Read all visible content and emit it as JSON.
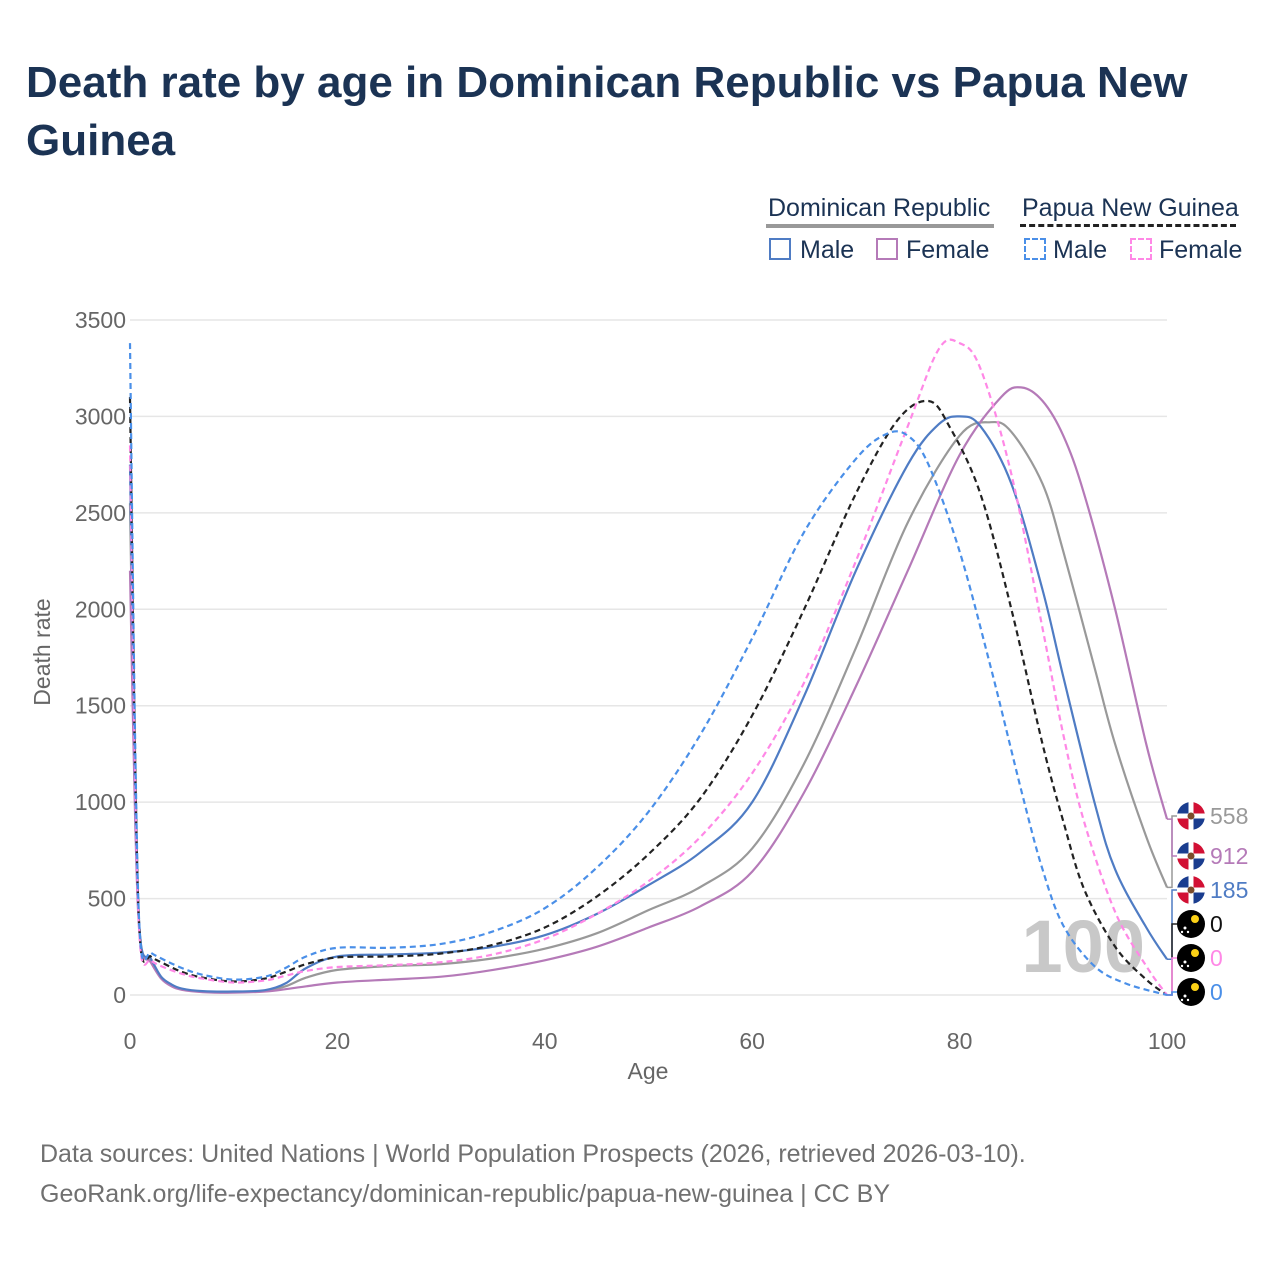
{
  "title": "Death rate by age in Dominican Republic vs Papua New Guinea",
  "legend": {
    "group1": "Dominican Republic",
    "group2": "Papua New Guinea",
    "male": "Male",
    "female": "Female"
  },
  "footer": {
    "line1": "Data sources: United Nations | World Population Prospects (2026, retrieved 2026-03-10).",
    "line2": "GeoRank.org/life-expectancy/dominican-republic/papua-new-guinea | CC BY"
  },
  "colors": {
    "dr_male": "#4f7cc4",
    "dr_female": "#b57ab8",
    "dr_total": "#999999",
    "png_male": "#4a8fe8",
    "png_female": "#ff88e6",
    "png_total": "#222222",
    "title": "#1b3354"
  },
  "chart_data": {
    "type": "line",
    "title": "Death rate by age in Dominican Republic vs Papua New Guinea",
    "xlabel": "Age",
    "ylabel": "Death rate",
    "xlim": [
      0,
      100
    ],
    "ylim": [
      0,
      3500
    ],
    "x_ticks": [
      0,
      20,
      40,
      60,
      80,
      100
    ],
    "y_ticks": [
      0,
      500,
      1000,
      1500,
      2000,
      2500,
      3000,
      3500
    ],
    "watermark": "100",
    "series": [
      {
        "name": "Dominican Republic Total",
        "country": "Dominican Republic",
        "sex": "Total",
        "dashed": false,
        "color": "#999999",
        "points": [
          [
            0,
            2550
          ],
          [
            0.5,
            1000
          ],
          [
            1,
            280
          ],
          [
            2,
            180
          ],
          [
            3,
            90
          ],
          [
            4,
            50
          ],
          [
            5,
            30
          ],
          [
            7,
            18
          ],
          [
            10,
            15
          ],
          [
            13,
            22
          ],
          [
            15,
            45
          ],
          [
            17,
            90
          ],
          [
            20,
            130
          ],
          [
            25,
            150
          ],
          [
            30,
            160
          ],
          [
            35,
            190
          ],
          [
            40,
            240
          ],
          [
            45,
            320
          ],
          [
            50,
            440
          ],
          [
            55,
            560
          ],
          [
            60,
            760
          ],
          [
            65,
            1200
          ],
          [
            70,
            1800
          ],
          [
            75,
            2450
          ],
          [
            80,
            2900
          ],
          [
            83,
            2970
          ],
          [
            85,
            2920
          ],
          [
            88,
            2650
          ],
          [
            90,
            2300
          ],
          [
            93,
            1700
          ],
          [
            95,
            1300
          ],
          [
            98,
            820
          ],
          [
            100,
            558
          ]
        ],
        "end_label": "558"
      },
      {
        "name": "Dominican Republic Female",
        "country": "Dominican Republic",
        "sex": "Female",
        "dashed": false,
        "color": "#b57ab8",
        "points": [
          [
            0,
            2200
          ],
          [
            0.5,
            900
          ],
          [
            1,
            270
          ],
          [
            2,
            170
          ],
          [
            3,
            85
          ],
          [
            4,
            45
          ],
          [
            5,
            27
          ],
          [
            7,
            15
          ],
          [
            10,
            12
          ],
          [
            13,
            18
          ],
          [
            15,
            30
          ],
          [
            17,
            45
          ],
          [
            20,
            65
          ],
          [
            25,
            80
          ],
          [
            30,
            95
          ],
          [
            35,
            130
          ],
          [
            40,
            180
          ],
          [
            45,
            250
          ],
          [
            50,
            350
          ],
          [
            55,
            460
          ],
          [
            60,
            640
          ],
          [
            65,
            1050
          ],
          [
            70,
            1600
          ],
          [
            75,
            2200
          ],
          [
            80,
            2800
          ],
          [
            84,
            3100
          ],
          [
            86,
            3150
          ],
          [
            88,
            3080
          ],
          [
            90,
            2900
          ],
          [
            92,
            2600
          ],
          [
            95,
            2000
          ],
          [
            98,
            1300
          ],
          [
            100,
            912
          ]
        ],
        "end_label": "912"
      },
      {
        "name": "Dominican Republic Male",
        "country": "Dominican Republic",
        "sex": "Male",
        "dashed": false,
        "color": "#4f7cc4",
        "points": [
          [
            0,
            2750
          ],
          [
            0.5,
            1050
          ],
          [
            1,
            290
          ],
          [
            2,
            190
          ],
          [
            3,
            95
          ],
          [
            4,
            55
          ],
          [
            5,
            33
          ],
          [
            7,
            20
          ],
          [
            10,
            18
          ],
          [
            13,
            25
          ],
          [
            15,
            60
          ],
          [
            17,
            140
          ],
          [
            20,
            200
          ],
          [
            25,
            210
          ],
          [
            30,
            220
          ],
          [
            35,
            250
          ],
          [
            40,
            310
          ],
          [
            45,
            420
          ],
          [
            50,
            570
          ],
          [
            55,
            740
          ],
          [
            60,
            1000
          ],
          [
            65,
            1550
          ],
          [
            70,
            2200
          ],
          [
            75,
            2750
          ],
          [
            78,
            2960
          ],
          [
            80,
            3000
          ],
          [
            82,
            2950
          ],
          [
            85,
            2650
          ],
          [
            88,
            2100
          ],
          [
            90,
            1650
          ],
          [
            93,
            1000
          ],
          [
            95,
            650
          ],
          [
            98,
            350
          ],
          [
            100,
            185
          ]
        ],
        "end_label": "185"
      },
      {
        "name": "Papua New Guinea Total",
        "country": "Papua New Guinea",
        "sex": "Total",
        "dashed": true,
        "color": "#222222",
        "points": [
          [
            0,
            3100
          ],
          [
            0.5,
            1200
          ],
          [
            1,
            260
          ],
          [
            2,
            200
          ],
          [
            3,
            170
          ],
          [
            5,
            120
          ],
          [
            7,
            90
          ],
          [
            10,
            70
          ],
          [
            13,
            85
          ],
          [
            15,
            120
          ],
          [
            17,
            160
          ],
          [
            20,
            195
          ],
          [
            25,
            200
          ],
          [
            30,
            215
          ],
          [
            35,
            260
          ],
          [
            40,
            350
          ],
          [
            45,
            510
          ],
          [
            50,
            730
          ],
          [
            55,
            1020
          ],
          [
            60,
            1450
          ],
          [
            65,
            2000
          ],
          [
            70,
            2600
          ],
          [
            74,
            2980
          ],
          [
            77,
            3080
          ],
          [
            79,
            2950
          ],
          [
            82,
            2600
          ],
          [
            85,
            2000
          ],
          [
            88,
            1300
          ],
          [
            90,
            900
          ],
          [
            92,
            550
          ],
          [
            95,
            250
          ],
          [
            98,
            80
          ],
          [
            100,
            0
          ]
        ],
        "end_label": "0"
      },
      {
        "name": "Papua New Guinea Female",
        "country": "Papua New Guinea",
        "sex": "Female",
        "dashed": true,
        "color": "#ff88e6",
        "points": [
          [
            0,
            2850
          ],
          [
            0.5,
            1100
          ],
          [
            1,
            240
          ],
          [
            2,
            180
          ],
          [
            3,
            150
          ],
          [
            5,
            110
          ],
          [
            7,
            85
          ],
          [
            10,
            65
          ],
          [
            13,
            75
          ],
          [
            15,
            100
          ],
          [
            17,
            125
          ],
          [
            20,
            145
          ],
          [
            25,
            155
          ],
          [
            30,
            170
          ],
          [
            35,
            210
          ],
          [
            40,
            290
          ],
          [
            45,
            420
          ],
          [
            50,
            590
          ],
          [
            55,
            820
          ],
          [
            60,
            1150
          ],
          [
            65,
            1620
          ],
          [
            70,
            2250
          ],
          [
            75,
            2950
          ],
          [
            78,
            3350
          ],
          [
            80,
            3380
          ],
          [
            82,
            3250
          ],
          [
            85,
            2700
          ],
          [
            88,
            1900
          ],
          [
            90,
            1350
          ],
          [
            92,
            900
          ],
          [
            95,
            430
          ],
          [
            98,
            150
          ],
          [
            100,
            0
          ]
        ],
        "end_label": "0"
      },
      {
        "name": "Papua New Guinea Male",
        "country": "Papua New Guinea",
        "sex": "Male",
        "dashed": true,
        "color": "#4a8fe8",
        "points": [
          [
            0,
            3380
          ],
          [
            0.5,
            1300
          ],
          [
            1,
            270
          ],
          [
            2,
            220
          ],
          [
            3,
            190
          ],
          [
            5,
            140
          ],
          [
            7,
            105
          ],
          [
            10,
            80
          ],
          [
            13,
            95
          ],
          [
            15,
            140
          ],
          [
            17,
            200
          ],
          [
            20,
            245
          ],
          [
            25,
            245
          ],
          [
            30,
            265
          ],
          [
            35,
            330
          ],
          [
            40,
            450
          ],
          [
            45,
            660
          ],
          [
            50,
            950
          ],
          [
            55,
            1350
          ],
          [
            60,
            1850
          ],
          [
            65,
            2400
          ],
          [
            70,
            2780
          ],
          [
            73,
            2910
          ],
          [
            75,
            2900
          ],
          [
            77,
            2750
          ],
          [
            80,
            2300
          ],
          [
            83,
            1700
          ],
          [
            86,
            1050
          ],
          [
            88,
            650
          ],
          [
            90,
            360
          ],
          [
            93,
            150
          ],
          [
            96,
            60
          ],
          [
            100,
            0
          ]
        ],
        "end_label": "0"
      }
    ]
  }
}
